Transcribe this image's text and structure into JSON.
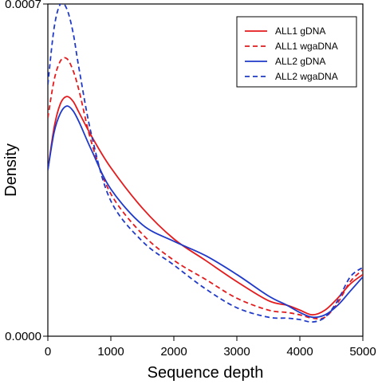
{
  "chart_data": {
    "type": "line",
    "xlabel": "Sequence depth",
    "ylabel": "Density",
    "xlim": [
      0,
      5000
    ],
    "ylim": [
      0,
      0.0007
    ],
    "x_ticks": [
      0,
      1000,
      2000,
      3000,
      4000,
      5000
    ],
    "x_tick_labels": [
      "0",
      "1000",
      "2000",
      "3000",
      "4000",
      "5000"
    ],
    "y_ticks": [
      0,
      0.0007
    ],
    "y_tick_labels": [
      "0.0000",
      "0.0007"
    ],
    "grid": false,
    "legend_position": "top-right",
    "series": [
      {
        "name": "ALL1 gDNA",
        "color": "#e41a1c",
        "dash": "solid",
        "x": [
          0,
          100,
          200,
          300,
          400,
          500,
          700,
          1000,
          1500,
          2000,
          2500,
          3000,
          3500,
          3800,
          4000,
          4200,
          4400,
          4600,
          4800,
          5000
        ],
        "y": [
          0.00035,
          0.00044,
          0.00049,
          0.000505,
          0.000495,
          0.00047,
          0.00042,
          0.000355,
          0.00027,
          0.000205,
          0.00016,
          0.000115,
          7.5e-05,
          6.5e-05,
          5.5e-05,
          4.5e-05,
          5.5e-05,
          8e-05,
          0.00011,
          0.00013
        ]
      },
      {
        "name": "ALL1 wgaDNA",
        "color": "#e41a1c",
        "dash": "dashed",
        "x": [
          0,
          100,
          200,
          300,
          400,
          500,
          700,
          1000,
          1500,
          2000,
          2500,
          3000,
          3500,
          3800,
          4000,
          4200,
          4400,
          4600,
          4800,
          5000
        ],
        "y": [
          0.00046,
          0.00054,
          0.00058,
          0.000585,
          0.00056,
          0.000515,
          0.000405,
          0.0003,
          0.000215,
          0.00016,
          0.00012,
          8e-05,
          5.5e-05,
          5e-05,
          4.5e-05,
          3.8e-05,
          4e-05,
          7e-05,
          0.000115,
          0.00014
        ]
      },
      {
        "name": "ALL2 gDNA",
        "color": "#1f39c9",
        "dash": "solid",
        "x": [
          0,
          100,
          200,
          300,
          400,
          500,
          700,
          1000,
          1500,
          2000,
          2500,
          3000,
          3500,
          3800,
          4000,
          4200,
          4400,
          4600,
          4800,
          5000
        ],
        "y": [
          0.00035,
          0.00043,
          0.00047,
          0.000485,
          0.000475,
          0.00045,
          0.00039,
          0.00031,
          0.000235,
          0.0002,
          0.00017,
          0.00013,
          8.5e-05,
          6.5e-05,
          5e-05,
          4e-05,
          4.5e-05,
          6.5e-05,
          9.5e-05,
          0.000125
        ]
      },
      {
        "name": "ALL2 wgaDNA",
        "color": "#1f39c9",
        "dash": "dashed",
        "x": [
          0,
          100,
          200,
          300,
          400,
          500,
          700,
          1000,
          1500,
          2000,
          2500,
          3000,
          3500,
          3800,
          4000,
          4200,
          4400,
          4600,
          4800,
          5000
        ],
        "y": [
          0.00053,
          0.00065,
          0.0007,
          0.00069,
          0.00064,
          0.00056,
          0.00042,
          0.000285,
          0.0002,
          0.00015,
          0.0001,
          6e-05,
          4e-05,
          3.8e-05,
          3.5e-05,
          3e-05,
          4e-05,
          7.5e-05,
          0.000125,
          0.000145
        ]
      }
    ]
  }
}
